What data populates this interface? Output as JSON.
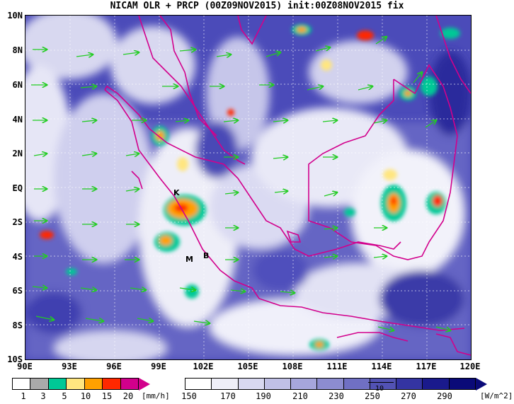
{
  "title": "NICAM OLR + PRCP (00Z09NOV2015) init:00Z08NOV2015 fix",
  "map": {
    "lat_labels": [
      "10N",
      "8N",
      "6N",
      "4N",
      "2N",
      "EQ",
      "2S",
      "4S",
      "6S",
      "8S",
      "10S"
    ],
    "lon_labels": [
      "90E",
      "93E",
      "96E",
      "99E",
      "102E",
      "105E",
      "108E",
      "111E",
      "114E",
      "117E",
      "120E"
    ],
    "station_labels": [
      "K",
      "M",
      "B"
    ]
  },
  "prcp_colorbar": {
    "labels": [
      "1",
      "3",
      "5",
      "10",
      "15",
      "20"
    ],
    "unit": "[mm/h]",
    "colors": [
      "#ffffff",
      "#aaaaaa",
      "#00c896",
      "#ffe680",
      "#ffa000",
      "#ff2800",
      "#d2008c"
    ]
  },
  "olr_colorbar": {
    "labels": [
      "150",
      "170",
      "190",
      "210",
      "230",
      "250",
      "270",
      "290"
    ],
    "unit": "[W/m^2]",
    "colors": [
      "#ffffff",
      "#eeeef8",
      "#d8d8f0",
      "#c0c0e6",
      "#a6a6dc",
      "#8c8cd0",
      "#7070c4",
      "#5252b4",
      "#3434a2",
      "#1a1a8c",
      "#0a0a78"
    ],
    "reference_vector_label": "10"
  }
}
